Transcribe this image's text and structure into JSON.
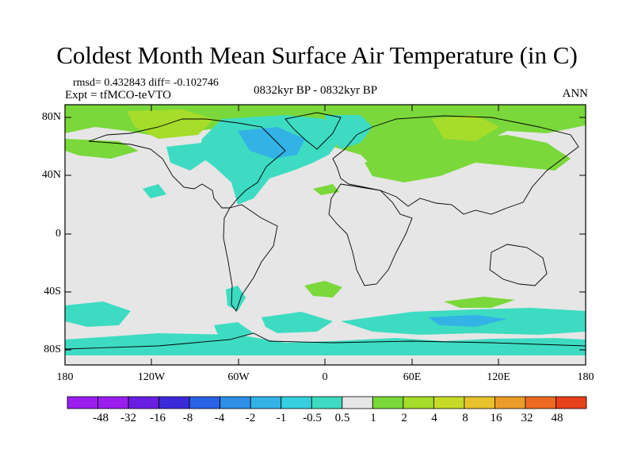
{
  "title": "Coldest Month Mean Surface Air Temperature (in C)",
  "stats": "rmsd= 0.432843 diff= -0.102746",
  "experiment": "Expt = tfMCO-teVTO",
  "period": "0832kyr BP - 0832kyr BP",
  "season": "ANN",
  "lat_labels": [
    "80N",
    "40N",
    "0",
    "40S",
    "80S"
  ],
  "lon_labels": [
    "180",
    "120W",
    "60W",
    "0",
    "60E",
    "120E",
    "180"
  ],
  "colorbar": {
    "labels": [
      "-48",
      "-32",
      "-16",
      "-8",
      "-4",
      "-2",
      "-1",
      "-0.5",
      "0.5",
      "1",
      "2",
      "4",
      "8",
      "16",
      "32",
      "48"
    ],
    "colors": [
      "#9a1ef0",
      "#6a1ee0",
      "#3a2ad8",
      "#2a62e6",
      "#2d8fe8",
      "#33b2e6",
      "#35cfe0",
      "#3ddcc2",
      "#e6e6e6",
      "#7ad83a",
      "#a6dc2a",
      "#c8da28",
      "#e8c22a",
      "#ec9c28",
      "#ec6a22",
      "#e8401a"
    ]
  },
  "map_colors": {
    "background": "#e6e6e6",
    "cool": "#3ddcc2",
    "cooler": "#33b2e6",
    "warm": "#7ad83a",
    "warmer": "#a6dc2a"
  }
}
